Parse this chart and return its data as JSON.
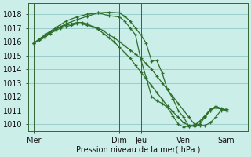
{
  "background_color": "#cceee8",
  "grid_color": "#99cccc",
  "line_color": "#2d6e2d",
  "xlabel": "Pression niveau de la mer( hPa )",
  "ylim": [
    1009.5,
    1018.8
  ],
  "yticks": [
    1010,
    1011,
    1012,
    1013,
    1014,
    1015,
    1016,
    1017,
    1018
  ],
  "day_labels": [
    "Mer",
    "Dim",
    "Jeu",
    "Ven",
    "Sam"
  ],
  "day_x": [
    0,
    16,
    20,
    28,
    36
  ],
  "vline_x": [
    0,
    16,
    20,
    28,
    36
  ],
  "xlim": [
    -1,
    40
  ],
  "series1_x": [
    0,
    1,
    2,
    3,
    4,
    5,
    6,
    7,
    8,
    9,
    10,
    11,
    12,
    13,
    14,
    15,
    16,
    17,
    18,
    19,
    20,
    21,
    22,
    23,
    24,
    25,
    26,
    27,
    28,
    29,
    30,
    31,
    32,
    33,
    34,
    35,
    36
  ],
  "series1_y": [
    1015.9,
    1016.1,
    1016.3,
    1016.6,
    1016.8,
    1017.0,
    1017.1,
    1017.2,
    1017.3,
    1017.3,
    1017.2,
    1017.1,
    1017.0,
    1016.8,
    1016.5,
    1016.3,
    1016.0,
    1015.7,
    1015.4,
    1015.1,
    1014.8,
    1014.4,
    1014.0,
    1013.5,
    1013.0,
    1012.5,
    1012.0,
    1011.5,
    1011.0,
    1010.5,
    1010.0,
    1009.9,
    1009.9,
    1010.1,
    1010.5,
    1011.0,
    1011.1
  ],
  "series2_x": [
    0,
    1,
    2,
    3,
    4,
    5,
    6,
    7,
    8,
    9,
    10,
    11,
    12,
    13,
    14,
    15,
    16,
    17,
    18,
    19,
    20,
    21,
    22,
    23,
    24,
    25,
    26,
    27,
    28,
    29,
    30,
    31,
    32,
    33,
    34,
    35,
    36
  ],
  "series2_y": [
    1015.9,
    1016.2,
    1016.4,
    1016.7,
    1016.9,
    1017.1,
    1017.2,
    1017.3,
    1017.4,
    1017.4,
    1017.3,
    1017.1,
    1016.9,
    1016.6,
    1016.3,
    1016.0,
    1015.6,
    1015.2,
    1014.8,
    1014.3,
    1013.8,
    1013.3,
    1012.8,
    1012.3,
    1011.8,
    1011.3,
    1010.9,
    1010.5,
    1010.1,
    1009.9,
    1009.9,
    1010.2,
    1010.6,
    1011.1,
    1011.2,
    1011.1,
    1011.0
  ],
  "series3_x": [
    0,
    2,
    4,
    6,
    8,
    10,
    12,
    14,
    16,
    17,
    18,
    19,
    20,
    21,
    22,
    23,
    24,
    25,
    26,
    27,
    28,
    29,
    30,
    31,
    32,
    33,
    34,
    35,
    36
  ],
  "series3_y": [
    1015.9,
    1016.5,
    1017.0,
    1017.5,
    1017.8,
    1018.0,
    1018.1,
    1017.9,
    1017.8,
    1017.5,
    1017.0,
    1016.5,
    1014.7,
    1013.4,
    1012.0,
    1011.7,
    1011.5,
    1011.2,
    1010.6,
    1010.0,
    1009.8,
    1009.85,
    1009.9,
    1010.2,
    1010.6,
    1011.0,
    1011.2,
    1011.1,
    1011.0
  ],
  "series4_x": [
    0,
    2,
    4,
    6,
    8,
    10,
    12,
    14,
    16,
    17,
    18,
    19,
    20,
    21,
    22,
    23,
    24,
    25,
    26,
    27,
    28,
    29,
    30,
    31,
    32,
    33,
    34,
    35,
    36
  ],
  "series4_y": [
    1015.9,
    1016.4,
    1016.9,
    1017.3,
    1017.6,
    1017.85,
    1018.1,
    1018.15,
    1018.1,
    1017.85,
    1017.5,
    1017.0,
    1016.5,
    1015.9,
    1014.6,
    1014.65,
    1013.7,
    1012.5,
    1011.85,
    1011.0,
    1010.5,
    1009.85,
    1009.85,
    1010.0,
    1010.5,
    1011.0,
    1011.3,
    1011.15,
    1011.0
  ]
}
